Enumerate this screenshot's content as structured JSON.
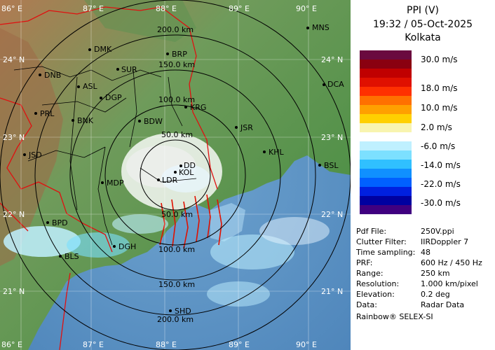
{
  "title": {
    "product": "PPI (V)",
    "datetime": "19:32 / 05-Oct-2025",
    "station": "Kolkata"
  },
  "colorbar": {
    "colors": [
      "#6a0a3f",
      "#8a0010",
      "#c00000",
      "#e01000",
      "#ff3000",
      "#ff7000",
      "#ffa000",
      "#ffd000",
      "#f8f4b0",
      "#ffffff",
      "#bff0ff",
      "#7ce0ff",
      "#30c0ff",
      "#1090ff",
      "#0060ff",
      "#0020e0",
      "#0000a0",
      "#400080"
    ],
    "labels": [
      "30.0 m/s",
      "18.0 m/s",
      "10.0 m/s",
      "2.0 m/s",
      "-6.0 m/s",
      "-14.0 m/s",
      "-22.0 m/s",
      "-30.0 m/s"
    ]
  },
  "metadata": [
    {
      "key": "Pdf File:",
      "value": "250V.ppi"
    },
    {
      "key": "Clutter Filter:",
      "value": "IIRDoppler 7"
    },
    {
      "key": "Time sampling:",
      "value": "48"
    },
    {
      "key": "PRF:",
      "value": "600 Hz / 450 Hz"
    },
    {
      "key": "Range:",
      "value": "250 km"
    },
    {
      "key": "Resolution:",
      "value": "1.000 km/pixel"
    },
    {
      "key": "Elevation:",
      "value": "0.2 deg"
    },
    {
      "key": "Data:",
      "value": "Radar Data"
    }
  ],
  "brand": "Rainbow® SELEX-SI",
  "map": {
    "lon_labels": [
      "86° E",
      "87° E",
      "88° E",
      "89° E",
      "90° E"
    ],
    "lat_labels": [
      "24° N",
      "23° N",
      "22° N",
      "21° N"
    ],
    "range_rings": [
      "50.0 km",
      "100.0 km",
      "150.0 km",
      "200.0 km"
    ],
    "places": [
      "MNS",
      "DMK",
      "BRP",
      "DNB",
      "SUR",
      "ASL",
      "DGP",
      "DCA",
      "PRL",
      "BNK",
      "BDW",
      "KRG",
      "JSR",
      "KHL",
      "JSD",
      "DD",
      "KOL",
      "BSL",
      "MDP",
      "LDR",
      "BPD",
      "DGH",
      "BLS",
      "SHD"
    ]
  }
}
